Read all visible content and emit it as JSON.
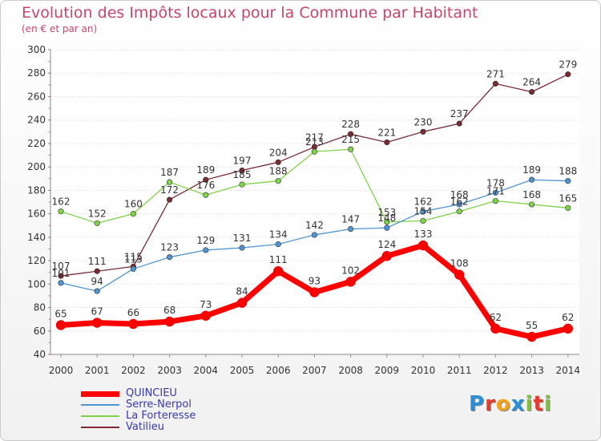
{
  "title": "Evolution des Impôts locaux pour la Commune par Habitant",
  "subtitle": "(en € et par an)",
  "logo_text": "Proxiti",
  "chart_data": {
    "type": "line",
    "title": "Evolution des Impôts locaux pour la Commune par Habitant",
    "subtitle": "(en € et par an)",
    "x": [
      2000,
      2001,
      2002,
      2003,
      2004,
      2005,
      2006,
      2007,
      2008,
      2009,
      2010,
      2011,
      2012,
      2013,
      2014
    ],
    "ylim": [
      40,
      300
    ],
    "yticks": [
      40,
      60,
      80,
      100,
      120,
      140,
      160,
      180,
      200,
      220,
      240,
      260,
      280,
      300
    ],
    "grid": "horizontal",
    "legend_position": "bottom-left",
    "series": [
      {
        "name": "QUINCIEU",
        "color": "#ff0000",
        "values": [
          65,
          67,
          66,
          68,
          73,
          84,
          111,
          93,
          102,
          124,
          133,
          108,
          62,
          55,
          62
        ]
      },
      {
        "name": "Serre-Nerpol",
        "color": "#4f93d1",
        "values": [
          101,
          94,
          113,
          123,
          129,
          131,
          134,
          142,
          147,
          148,
          162,
          168,
          178,
          189,
          188
        ]
      },
      {
        "name": "La Forteresse",
        "color": "#7ed348",
        "values": [
          162,
          152,
          160,
          187,
          176,
          185,
          188,
          213,
          215,
          153,
          154,
          162,
          171,
          168,
          165
        ]
      },
      {
        "name": "Vatilieu",
        "color": "#7a2a32",
        "values": [
          107,
          111,
          115,
          172,
          189,
          197,
          204,
          217,
          228,
          221,
          230,
          237,
          271,
          264,
          279
        ]
      }
    ]
  }
}
